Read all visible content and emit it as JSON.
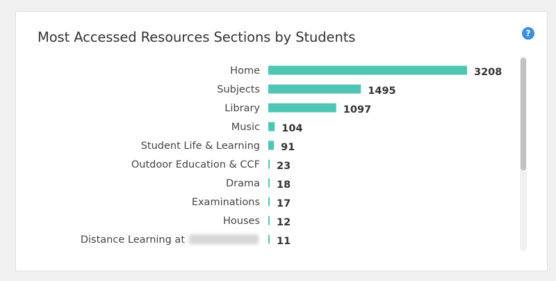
{
  "card": {
    "title": "Most Accessed Resources Sections by Students",
    "help_icon": "help-icon",
    "help_glyph": "?"
  },
  "colors": {
    "bar": "#4fc6b5",
    "help": "#3d8ee0"
  },
  "chart_data": {
    "type": "bar",
    "orientation": "horizontal",
    "title": "Most Accessed Resources Sections by Students",
    "categories": [
      "Home",
      "Subjects",
      "Library",
      "Music",
      "Student Life & Learning",
      "Outdoor Education & CCF",
      "Drama",
      "Examinations",
      "Houses",
      "Distance Learning at"
    ],
    "values": [
      3208,
      1495,
      1097,
      104,
      91,
      23,
      18,
      17,
      12,
      11
    ],
    "xlim": [
      0,
      3208
    ],
    "grid": false,
    "data_labels": true
  }
}
